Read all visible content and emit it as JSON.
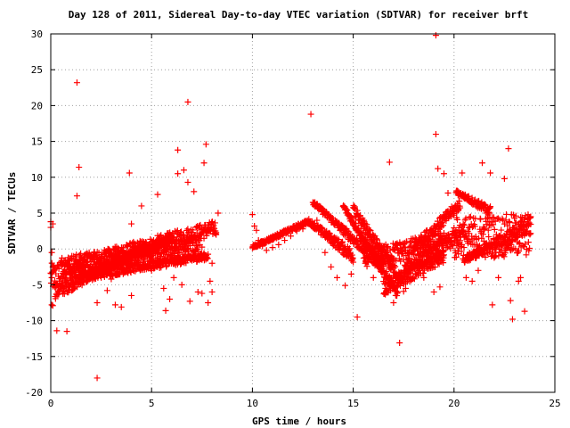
{
  "colors": {
    "series": "#ff0000",
    "grid": "#a0a0a0",
    "axes": "#000000",
    "background": "#ffffff"
  },
  "chart_data": {
    "type": "scatter",
    "title": "Day 128 of 2011, Sidereal Day-to-day VTEC variation (SDTVAR) for receiver brft",
    "xlabel": "GPS time / hours",
    "ylabel": "SDTVAR / TECUs",
    "xlim": [
      0,
      25
    ],
    "ylim": [
      -20,
      30
    ],
    "xticks": [
      0,
      5,
      10,
      15,
      20,
      25
    ],
    "yticks": [
      -20,
      -15,
      -10,
      -5,
      0,
      5,
      10,
      15,
      20,
      25,
      30
    ],
    "grid": true,
    "marker": "plus",
    "legend": "none",
    "series": [
      {
        "points": [
          [
            0.0,
            3.8
          ],
          [
            0.0,
            3.0
          ],
          [
            0.05,
            -0.5
          ],
          [
            0.05,
            -4.0
          ],
          [
            0.05,
            -7.8
          ],
          [
            0.1,
            -7.9
          ],
          [
            0.1,
            3.5
          ],
          [
            0.1,
            -2.5
          ],
          [
            0.15,
            -5.0
          ],
          [
            0.3,
            -11.4
          ],
          [
            0.8,
            -11.5
          ],
          [
            1.3,
            23.2
          ],
          [
            1.4,
            11.4
          ],
          [
            1.3,
            7.4
          ],
          [
            2.3,
            -18.0
          ],
          [
            2.3,
            -7.5
          ],
          [
            2.5,
            -4.0
          ],
          [
            2.8,
            -5.8
          ],
          [
            3.0,
            -4.2
          ],
          [
            3.2,
            -7.8
          ],
          [
            3.5,
            -8.1
          ],
          [
            3.9,
            10.6
          ],
          [
            4.0,
            -6.5
          ],
          [
            4.0,
            3.5
          ],
          [
            4.5,
            6.0
          ],
          [
            5.0,
            -3.0
          ],
          [
            5.3,
            7.6
          ],
          [
            5.6,
            -5.5
          ],
          [
            5.7,
            -8.6
          ],
          [
            5.9,
            -7.0
          ],
          [
            6.1,
            -4.0
          ],
          [
            6.3,
            13.8
          ],
          [
            6.3,
            10.5
          ],
          [
            6.5,
            -5.0
          ],
          [
            6.6,
            11.0
          ],
          [
            6.8,
            9.3
          ],
          [
            6.8,
            20.5
          ],
          [
            6.9,
            -7.3
          ],
          [
            7.1,
            8.0
          ],
          [
            7.3,
            -6.0
          ],
          [
            7.5,
            -1.5
          ],
          [
            7.7,
            14.6
          ],
          [
            7.6,
            12.0
          ],
          [
            7.5,
            -6.2
          ],
          [
            7.8,
            -7.5
          ],
          [
            7.9,
            -4.5
          ],
          [
            8.0,
            -6.0
          ],
          [
            8.0,
            -2.0
          ],
          [
            8.2,
            2.0
          ],
          [
            8.3,
            5.0
          ],
          [
            10.0,
            4.8
          ],
          [
            10.1,
            3.2
          ],
          [
            10.2,
            2.6
          ],
          [
            10.3,
            1.2
          ],
          [
            10.5,
            0.4
          ],
          [
            10.7,
            -0.2
          ],
          [
            11.0,
            0.2
          ],
          [
            11.3,
            0.6
          ],
          [
            11.6,
            1.2
          ],
          [
            11.9,
            1.8
          ],
          [
            12.2,
            2.5
          ],
          [
            12.5,
            2.8
          ],
          [
            12.9,
            3.4
          ],
          [
            12.9,
            18.8
          ],
          [
            13.1,
            6.5
          ],
          [
            13.2,
            4.0
          ],
          [
            13.4,
            2.0
          ],
          [
            13.6,
            -0.5
          ],
          [
            13.9,
            -2.5
          ],
          [
            14.2,
            -4.0
          ],
          [
            14.6,
            -5.1
          ],
          [
            14.9,
            -3.5
          ],
          [
            15.2,
            -9.5
          ],
          [
            15.6,
            -2.0
          ],
          [
            16.0,
            -4.0
          ],
          [
            16.6,
            -5.5
          ],
          [
            16.8,
            12.1
          ],
          [
            17.0,
            -7.5
          ],
          [
            17.3,
            -13.1
          ],
          [
            17.6,
            -5.5
          ],
          [
            18.0,
            -2.0
          ],
          [
            18.5,
            -4.0
          ],
          [
            19.0,
            -6.0
          ],
          [
            19.1,
            29.8
          ],
          [
            19.1,
            16.0
          ],
          [
            19.2,
            11.2
          ],
          [
            19.3,
            -5.3
          ],
          [
            19.5,
            10.5
          ],
          [
            19.7,
            7.8
          ],
          [
            20.2,
            7.5
          ],
          [
            20.4,
            10.6
          ],
          [
            20.6,
            -4.0
          ],
          [
            20.9,
            -4.5
          ],
          [
            21.2,
            -3.0
          ],
          [
            21.4,
            12.0
          ],
          [
            21.6,
            5.0
          ],
          [
            21.8,
            10.6
          ],
          [
            21.9,
            -7.8
          ],
          [
            22.2,
            -4.0
          ],
          [
            22.5,
            9.8
          ],
          [
            22.7,
            14.0
          ],
          [
            22.8,
            -7.2
          ],
          [
            22.9,
            -9.8
          ],
          [
            23.2,
            -4.5
          ],
          [
            23.3,
            -4.0
          ],
          [
            23.5,
            -8.7
          ],
          [
            23.7,
            3.5
          ],
          [
            23.8,
            4.5
          ]
        ],
        "bands": [
          {
            "x": [
              0.0,
              8.2
            ],
            "y": [
              [
                -6.0,
                2.0
              ],
              [
                -2.0,
                4.0
              ]
            ]
          },
          {
            "x": [
              0.2,
              6.0
            ],
            "y": [
              [
                -7.0,
                1.2
              ],
              [
                -5.0,
                2.2
              ]
            ]
          },
          {
            "x": [
              0.5,
              7.5
            ],
            "y": [
              [
                -3.5,
                -1.0
              ],
              [
                -1.0,
                2.0
              ]
            ]
          },
          {
            "x": [
              1.5,
              7.8
            ],
            "y": [
              [
                -4.5,
                -1.5
              ],
              [
                -3.0,
                -0.5
              ]
            ]
          },
          {
            "x": [
              10.0,
              12.8
            ],
            "y": [
              [
                0.0,
                3.5
              ],
              [
                0.5,
                4.2
              ]
            ]
          },
          {
            "x": [
              12.8,
              15.0
            ],
            "y": [
              [
                3.5,
                -2.0
              ],
              [
                4.2,
                0.0
              ]
            ]
          },
          {
            "x": [
              13.0,
              16.5
            ],
            "y": [
              [
                6.2,
                -3.5
              ],
              [
                6.8,
                -1.5
              ]
            ]
          },
          {
            "x": [
              14.5,
              17.2
            ],
            "y": [
              [
                5.6,
                -7.0
              ],
              [
                6.4,
                -5.5
              ]
            ]
          },
          {
            "x": [
              15.0,
              17.5
            ],
            "y": [
              [
                5.0,
                -6.0
              ],
              [
                6.2,
                -4.0
              ]
            ]
          },
          {
            "x": [
              16.5,
              19.5
            ],
            "y": [
              [
                -6.5,
                -2.0
              ],
              [
                -4.5,
                0.0
              ]
            ]
          },
          {
            "x": [
              15.5,
              19.5
            ],
            "y": [
              [
                -2.5,
                -1.0
              ],
              [
                0.0,
                2.5
              ]
            ]
          },
          {
            "x": [
              17.5,
              20.5
            ],
            "y": [
              [
                -4.0,
                1.0
              ],
              [
                -2.0,
                3.5
              ]
            ]
          },
          {
            "x": [
              18.0,
              20.3
            ],
            "y": [
              [
                -1.0,
                5.5
              ],
              [
                1.0,
                7.0
              ]
            ]
          },
          {
            "x": [
              20.0,
              23.8
            ],
            "y": [
              [
                -1.5,
                -1.0
              ],
              [
                4.5,
                5.0
              ]
            ]
          },
          {
            "x": [
              20.1,
              21.8
            ],
            "y": [
              [
                7.8,
                4.5
              ],
              [
                8.2,
                6.0
              ]
            ]
          },
          {
            "x": [
              20.5,
              23.8
            ],
            "y": [
              [
                -2.0,
                2.0
              ],
              [
                -1.0,
                4.5
              ]
            ]
          }
        ]
      }
    ]
  }
}
